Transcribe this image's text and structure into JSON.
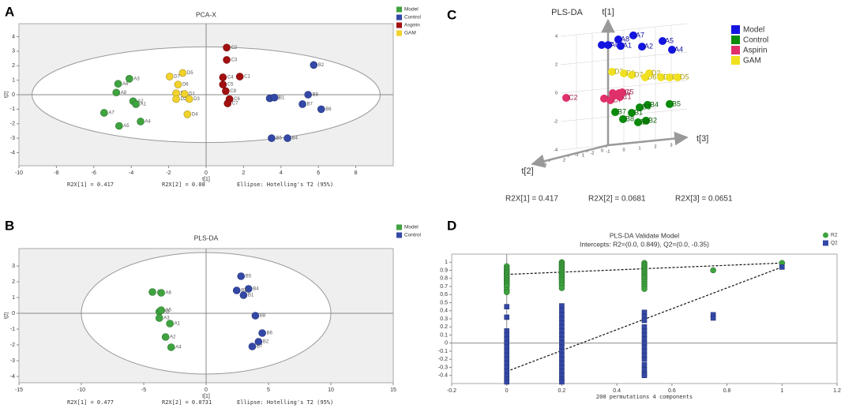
{
  "chart_data": [
    {
      "type": "scatter",
      "panel_label": "A",
      "title": "PCA-X",
      "xlabel": "t[1]",
      "ylabel": "t[2]",
      "xlim": [
        -10,
        10
      ],
      "ylim": [
        -4.9,
        4.9
      ],
      "xticks": [
        -10,
        -8,
        -6,
        -4,
        -2,
        0,
        2,
        4,
        6,
        8
      ],
      "yticks": [
        -4,
        -3,
        -2,
        -1,
        0,
        1,
        2,
        3,
        4
      ],
      "ellipse": {
        "rx": 9.3,
        "ry": 3.3
      },
      "footer": [
        "R2X[1] = 0.417",
        "R2X[2] = 0.08",
        "Ellipse: Hotelling's T2 (95%)"
      ],
      "series": [
        {
          "name": "Model",
          "color": "#3fa33f",
          "labels": [
            "A3",
            "A6",
            "A8",
            "A2",
            "A1",
            "A7",
            "A4",
            "A5"
          ],
          "x": [
            -4.1,
            -4.7,
            -4.8,
            -3.9,
            -3.75,
            -5.45,
            -3.5,
            -4.65
          ],
          "values": [
            1.1,
            0.75,
            0.15,
            -0.45,
            -0.65,
            -1.25,
            -1.85,
            -2.15
          ]
        },
        {
          "name": "Control",
          "color": "#3348a6",
          "labels": [
            "B2",
            "B3",
            "B1",
            "B8",
            "B7",
            "B6",
            "B5",
            "B4"
          ],
          "x": [
            5.75,
            3.4,
            3.65,
            5.45,
            5.15,
            6.15,
            3.5,
            4.35
          ],
          "values": [
            2.05,
            -0.25,
            -0.2,
            0,
            -0.65,
            -1.0,
            -3.0,
            -3.0
          ]
        },
        {
          "name": "Aspirin",
          "color": "#a3100f",
          "labels": [
            "C2",
            "C3",
            "C1",
            "C4",
            "C5",
            "C8",
            "C6",
            "C7"
          ],
          "x": [
            1.1,
            1.1,
            1.8,
            0.9,
            0.9,
            1.05,
            1.25,
            1.15
          ],
          "values": [
            3.25,
            2.4,
            1.25,
            1.2,
            0.7,
            0.25,
            -0.3,
            -0.6
          ]
        },
        {
          "name": "GAM",
          "color": "#f2d22c",
          "labels": [
            "D5",
            "D7",
            "D6",
            "D8",
            "D1",
            "D2",
            "D3",
            "D4"
          ],
          "x": [
            -1.25,
            -1.95,
            -1.5,
            -1.6,
            -1.15,
            -1.6,
            -0.9,
            -1.0
          ],
          "values": [
            1.5,
            1.25,
            0.7,
            0.1,
            0.05,
            -0.3,
            -0.3,
            -1.35
          ]
        }
      ]
    },
    {
      "type": "scatter",
      "panel_label": "B",
      "title": "PLS-DA",
      "xlabel": "t[1]",
      "ylabel": "t[2]",
      "xlim": [
        -15,
        15
      ],
      "ylim": [
        -4.4,
        4.1
      ],
      "xticks": [
        -15,
        -10,
        -5,
        0,
        5,
        10,
        15
      ],
      "yticks": [
        -4,
        -3,
        -2,
        -1,
        0,
        1,
        2,
        3
      ],
      "ellipse": {
        "rx": 10,
        "ry": 3.85
      },
      "footer": [
        "R2X[1] = 0.477",
        "R2X[2] = 0.0731",
        "Ellipse: Hotelling's T2 (95%)"
      ],
      "series": [
        {
          "name": "Model",
          "color": "#3fa33f",
          "labels": [
            "A7",
            "A6",
            "A8",
            "A5",
            "A3",
            "A1",
            "A2",
            "A4"
          ],
          "x": [
            -4.3,
            -3.6,
            -3.75,
            -3.6,
            -3.75,
            -2.9,
            -3.25,
            -2.8
          ],
          "values": [
            1.35,
            1.3,
            0.1,
            0.2,
            -0.3,
            -0.65,
            -1.5,
            -2.15
          ]
        },
        {
          "name": "Control",
          "color": "#3348a6",
          "labels": [
            "B5",
            "B4",
            "B3",
            "B1",
            "B8",
            "B6",
            "B2",
            "B7"
          ],
          "x": [
            2.8,
            3.4,
            2.45,
            3.0,
            3.95,
            4.5,
            4.2,
            3.7
          ],
          "values": [
            2.35,
            1.55,
            1.45,
            1.15,
            -0.15,
            -1.25,
            -1.8,
            -2.1
          ]
        }
      ]
    },
    {
      "type": "scatter3d",
      "panel_label": "C",
      "title": "PLS-DA",
      "t1_label": "t[1]",
      "t2_label": "t[2]",
      "t3_label": "t[3]",
      "t1lim": [
        -4,
        4.8
      ],
      "t2lim": [
        0,
        4
      ],
      "t3lim": [
        -4,
        4
      ],
      "t1ticks": [
        -4,
        -2,
        0,
        2,
        4
      ],
      "t2ticks": [
        0,
        1,
        2,
        3
      ],
      "t3ticks": [
        -3,
        -2,
        -1,
        0,
        1,
        2,
        3
      ],
      "footer": [
        "R2X[1] = 0.417",
        "R2X[2] = 0.0681",
        "R2X[3] = 0.0651"
      ],
      "series": [
        {
          "name": "Model",
          "color": "#1414e0",
          "labels": [
            "A3",
            "A6",
            "A8",
            "A1",
            "A7",
            "A2",
            "A5",
            "A4"
          ],
          "t3": [
            -1.4,
            -1.0,
            -0.35,
            -0.2,
            0.6,
            1.15,
            2.45,
            3.05
          ],
          "t1": [
            3.1,
            3.05,
            3.37,
            2.9,
            3.55,
            2.7,
            2.95,
            2.27
          ]
        },
        {
          "name": "Control",
          "color": "#0b8a0b",
          "labels": [
            "B5",
            "B4",
            "B3",
            "B1",
            "B7",
            "B2",
            "B6",
            "B8"
          ],
          "t3": [
            2.9,
            1.5,
            1.0,
            0.5,
            -0.55,
            1.4,
            0.9,
            -0.05
          ],
          "t1": [
            -1.54,
            -1.44,
            -1.56,
            -1.89,
            -1.72,
            -2.54,
            -2.6,
            -2.27
          ]
        },
        {
          "name": "Aspirin",
          "color": "#e0306a",
          "labels": [
            "C2",
            "C8",
            "C7",
            "C3",
            "C4",
            "C6",
            "C1",
            "C5"
          ],
          "t3": [
            -3.65,
            -1.25,
            -0.85,
            -0.7,
            -0.55,
            -0.3,
            -0.25,
            -0.1
          ],
          "t1": [
            -0.37,
            -0.69,
            -0.85,
            -0.37,
            -0.55,
            -0.41,
            -0.69,
            -0.38
          ]
        },
        {
          "name": "GAM",
          "color": "#f0e020",
          "labels": [
            "D3",
            "D1",
            "D7",
            "D6",
            "D2",
            "D8",
            "D4",
            "D5"
          ],
          "t3": [
            -0.75,
            0,
            0.5,
            1.35,
            1.6,
            2.35,
            2.9,
            3.4
          ],
          "t1": [
            1.14,
            0.94,
            0.78,
            0.52,
            0.77,
            0.41,
            0.34,
            0.29
          ]
        }
      ]
    },
    {
      "type": "scatter",
      "panel_label": "D",
      "title": "PLS-DA   Validate Model",
      "subtitle": "Intercepts: R2=(0.0, 0.849), Q2=(0.0, -0.35)",
      "xlabel": "200 permutations 4 components",
      "xlim": [
        -0.2,
        1.2
      ],
      "ylim": [
        -0.5,
        1.1
      ],
      "xticks": [
        -0.2,
        0,
        0.2,
        0.4,
        0.6,
        0.8,
        1,
        1.2
      ],
      "yticks": [
        -0.4,
        -0.3,
        -0.2,
        -0.1,
        0,
        0.1,
        0.2,
        0.3,
        0.4,
        0.5,
        0.6,
        0.7,
        0.8,
        0.9,
        1
      ],
      "lines": [
        {
          "x": [
            0,
            1
          ],
          "values": [
            0.849,
            0.99
          ]
        },
        {
          "x": [
            0,
            1
          ],
          "values": [
            -0.35,
            0.94
          ]
        }
      ],
      "series": [
        {
          "name": "R2",
          "color": "#3fa33f",
          "marker": "circle",
          "x": [
            0,
            0,
            0,
            0,
            0,
            0,
            0,
            0,
            0,
            0,
            0,
            0,
            0,
            0,
            0,
            0.2,
            0.2,
            0.2,
            0.2,
            0.2,
            0.2,
            0.2,
            0.2,
            0.2,
            0.2,
            0.2,
            0.2,
            0.2,
            0.2,
            0.2,
            0.5,
            0.5,
            0.5,
            0.5,
            0.5,
            0.5,
            0.5,
            0.5,
            0.5,
            0.5,
            0.5,
            0.5,
            0.5,
            0.5,
            0.5,
            0.75,
            1
          ],
          "values": [
            0.95,
            0.92,
            0.9,
            0.88,
            0.86,
            0.84,
            0.82,
            0.8,
            0.78,
            0.76,
            0.74,
            0.72,
            0.7,
            0.66,
            0.63,
            1.0,
            0.98,
            0.96,
            0.94,
            0.92,
            0.9,
            0.88,
            0.86,
            0.84,
            0.82,
            0.8,
            0.78,
            0.75,
            0.72,
            0.68,
            0.99,
            0.97,
            0.95,
            0.93,
            0.91,
            0.89,
            0.87,
            0.85,
            0.83,
            0.81,
            0.79,
            0.76,
            0.73,
            0.7,
            0.67,
            0.9,
            0.99
          ]
        },
        {
          "name": "Q2",
          "color": "#3348a6",
          "marker": "square",
          "x": [
            0,
            0,
            0,
            0,
            0,
            0,
            0,
            0,
            0,
            0,
            0,
            0,
            0,
            0,
            0,
            0,
            0.2,
            0.2,
            0.2,
            0.2,
            0.2,
            0.2,
            0.2,
            0.2,
            0.2,
            0.2,
            0.2,
            0.2,
            0.2,
            0.2,
            0.2,
            0.2,
            0.2,
            0.2,
            0.2,
            0.2,
            0.5,
            0.5,
            0.5,
            0.5,
            0.5,
            0.5,
            0.5,
            0.5,
            0.5,
            0.5,
            0.5,
            0.5,
            0.5,
            0.5,
            0.5,
            0.5,
            0.75,
            0.75,
            1
          ],
          "values": [
            0.45,
            0.32,
            0.15,
            0.1,
            0.05,
            0,
            -0.05,
            -0.1,
            -0.15,
            -0.2,
            -0.25,
            -0.3,
            -0.35,
            -0.4,
            -0.45,
            -0.48,
            0.46,
            0.4,
            0.35,
            0.3,
            0.25,
            0.2,
            0.15,
            0.1,
            0.05,
            0,
            -0.05,
            -0.1,
            -0.15,
            -0.2,
            -0.25,
            -0.3,
            -0.35,
            -0.4,
            -0.45,
            -0.48,
            0.38,
            0.33,
            0.28,
            0.2,
            0.15,
            0.1,
            0.05,
            0,
            -0.05,
            -0.1,
            -0.15,
            -0.2,
            -0.27,
            -0.33,
            -0.38,
            -0.4,
            0.35,
            0.31,
            0.94
          ]
        }
      ]
    }
  ]
}
